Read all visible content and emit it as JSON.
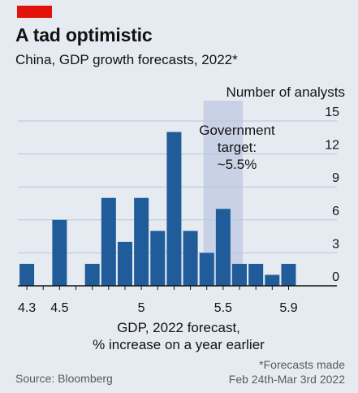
{
  "header": {
    "title": "A tad optimistic",
    "subtitle": "China, GDP growth forecasts, 2022*"
  },
  "annotation": {
    "line1": "Government",
    "line2": "target:",
    "line3": "~5.5%"
  },
  "footer": {
    "source": "Source: Bloomberg",
    "footnote_line1": "*Forecasts made",
    "footnote_line2": "Feb 24th-Mar 3rd 2022"
  },
  "colors": {
    "background": "#e6ebf2",
    "bar": "#1f5c99",
    "target_band": "#c2cce3",
    "accent": "#e3120b",
    "grid": "#b7c6d9"
  },
  "chart_data": {
    "type": "bar",
    "title": "",
    "ylabel": "Number of analysts",
    "xlabel_line1": "GDP, 2022 forecast,",
    "xlabel_line2": "% increase on a year earlier",
    "x": [
      4.3,
      4.4,
      4.5,
      4.6,
      4.7,
      4.8,
      4.9,
      5.0,
      5.1,
      5.2,
      5.3,
      5.4,
      5.5,
      5.6,
      5.7,
      5.8,
      5.9
    ],
    "values": [
      2,
      0,
      6,
      0,
      2,
      8,
      4,
      8,
      5,
      14,
      5,
      3,
      7,
      2,
      2,
      1,
      2
    ],
    "ylim": [
      0,
      15
    ],
    "yticks": [
      0,
      3,
      6,
      9,
      12,
      15
    ],
    "xtick_labels": [
      "4.3",
      "4.5",
      "5",
      "5.5",
      "5.9"
    ],
    "xtick_values": [
      4.3,
      4.5,
      5.0,
      5.5,
      5.9
    ],
    "target_band": [
      5.4,
      5.6
    ],
    "grid": true
  }
}
